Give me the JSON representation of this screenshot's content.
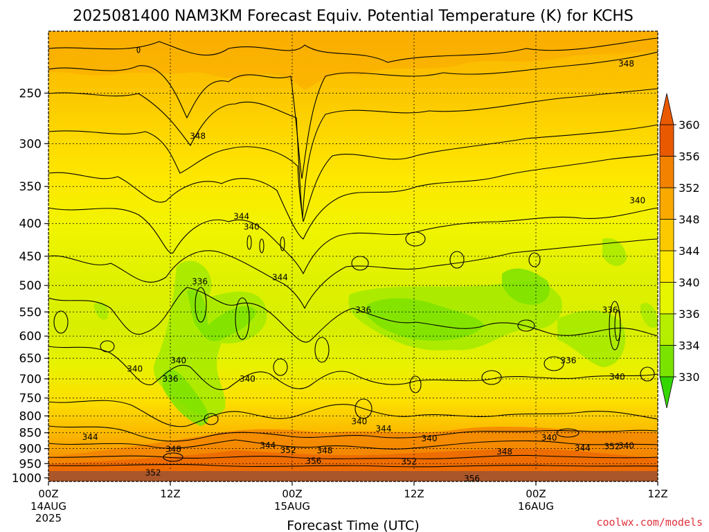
{
  "chart_data": {
    "type": "heatmap",
    "title": "2025081400 NAM3KM Forecast Equiv. Potential Temperature (K) for KCHS",
    "xlabel": "Forecast Time (UTC)",
    "ylabel": "",
    "x_ticks": [
      {
        "label": "00Z",
        "sub": [
          "14AUG",
          "2025"
        ],
        "hour": 0
      },
      {
        "label": "12Z",
        "sub": [],
        "hour": 12
      },
      {
        "label": "00Z",
        "sub": [
          "15AUG"
        ],
        "hour": 24
      },
      {
        "label": "12Z",
        "sub": [],
        "hour": 36
      },
      {
        "label": "00Z",
        "sub": [
          "16AUG"
        ],
        "hour": 48
      },
      {
        "label": "12Z",
        "sub": [],
        "hour": 60
      }
    ],
    "xlim": [
      0,
      60
    ],
    "y_ticks": [
      250,
      300,
      350,
      400,
      450,
      500,
      550,
      600,
      650,
      700,
      750,
      800,
      850,
      900,
      950,
      1000
    ],
    "ylim": [
      1013,
      200
    ],
    "y_scale": "log-pressure",
    "grid": true,
    "colorbar": {
      "levels": [
        330,
        334,
        336,
        340,
        344,
        348,
        352,
        356,
        360
      ],
      "colors": [
        "#34d600",
        "#7be300",
        "#b6ee00",
        "#e6f500",
        "#fde700",
        "#fcc900",
        "#f9a900",
        "#f38200",
        "#e95a00"
      ],
      "position": "right"
    },
    "contour_labels": [
      {
        "text": "348",
        "hour": 56.9,
        "p": 225
      },
      {
        "text": "348",
        "hour": 14.7,
        "p": 292
      },
      {
        "text": "340",
        "hour": 58.0,
        "p": 368
      },
      {
        "text": "344",
        "hour": 19.0,
        "p": 390
      },
      {
        "text": "340",
        "hour": 20.0,
        "p": 405
      },
      {
        "text": "344",
        "hour": 22.8,
        "p": 486
      },
      {
        "text": "336",
        "hour": 14.9,
        "p": 493
      },
      {
        "text": "336",
        "hour": 31.0,
        "p": 546
      },
      {
        "text": "336",
        "hour": 55.3,
        "p": 546
      },
      {
        "text": "340",
        "hour": 12.8,
        "p": 655
      },
      {
        "text": "336",
        "hour": 51.2,
        "p": 655
      },
      {
        "text": "340",
        "hour": 8.5,
        "p": 675
      },
      {
        "text": "336",
        "hour": 12.0,
        "p": 700
      },
      {
        "text": "340",
        "hour": 19.6,
        "p": 700
      },
      {
        "text": "340",
        "hour": 56.0,
        "p": 695
      },
      {
        "text": "340",
        "hour": 30.6,
        "p": 816
      },
      {
        "text": "344",
        "hour": 33.0,
        "p": 838
      },
      {
        "text": "344",
        "hour": 4.1,
        "p": 863
      },
      {
        "text": "340",
        "hour": 37.5,
        "p": 868
      },
      {
        "text": "340",
        "hour": 49.3,
        "p": 866
      },
      {
        "text": "344",
        "hour": 21.6,
        "p": 890
      },
      {
        "text": "352",
        "hour": 23.6,
        "p": 905
      },
      {
        "text": "348",
        "hour": 12.3,
        "p": 902
      },
      {
        "text": "348",
        "hour": 27.2,
        "p": 906
      },
      {
        "text": "348",
        "hour": 44.9,
        "p": 910
      },
      {
        "text": "344",
        "hour": 52.6,
        "p": 899
      },
      {
        "text": "352",
        "hour": 55.5,
        "p": 893
      },
      {
        "text": "340",
        "hour": 56.9,
        "p": 891
      },
      {
        "text": "356",
        "hour": 26.1,
        "p": 941
      },
      {
        "text": "352",
        "hour": 35.5,
        "p": 944
      },
      {
        "text": "352",
        "hour": 10.3,
        "p": 982
      },
      {
        "text": "356",
        "hour": 41.7,
        "p": 1003
      }
    ]
  },
  "footer": {
    "credit": "coolwx.com/models",
    "credit_color": "#e0303a"
  }
}
